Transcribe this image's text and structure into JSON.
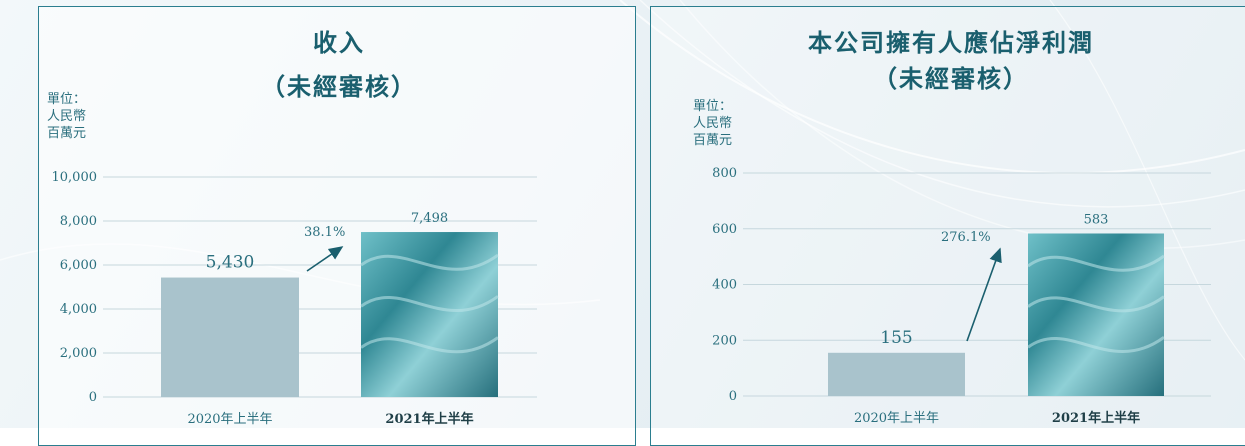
{
  "chart_data": [
    {
      "type": "bar",
      "title": "收入",
      "subtitle": "（未經審核）",
      "ylabel_lines": [
        "單位：",
        "人民幣",
        "百萬元"
      ],
      "ylim": [
        0,
        10000
      ],
      "yticks": [
        0,
        2000,
        4000,
        6000,
        8000,
        10000
      ],
      "ytick_labels": [
        "0",
        "2,000",
        "4,000",
        "6,000",
        "8,000",
        "10,000"
      ],
      "categories": [
        "2020年上半年",
        "2021年上半年"
      ],
      "values": [
        5430,
        7498
      ],
      "value_labels": [
        "5,430",
        "7,498"
      ],
      "growth_label": "38.1%",
      "grid": true,
      "colors": {
        "prior_bar": "#a9c3cc",
        "current_bar": "#3f9aa6",
        "accent": "#1a5f6e"
      }
    },
    {
      "type": "bar",
      "title": "本公司擁有人應佔淨利潤",
      "subtitle": "（未經審核）",
      "ylabel_lines": [
        "單位：",
        "人民幣",
        "百萬元"
      ],
      "ylim": [
        0,
        800
      ],
      "yticks": [
        0,
        200,
        400,
        600,
        800
      ],
      "ytick_labels": [
        "0",
        "200",
        "400",
        "600",
        "800"
      ],
      "categories": [
        "2020年上半年",
        "2021年上半年"
      ],
      "values": [
        155,
        583
      ],
      "value_labels": [
        "155",
        "583"
      ],
      "growth_label": "276.1%",
      "grid": true,
      "colors": {
        "prior_bar": "#a9c3cc",
        "current_bar": "#3f9aa6",
        "accent": "#1a5f6e"
      }
    }
  ]
}
